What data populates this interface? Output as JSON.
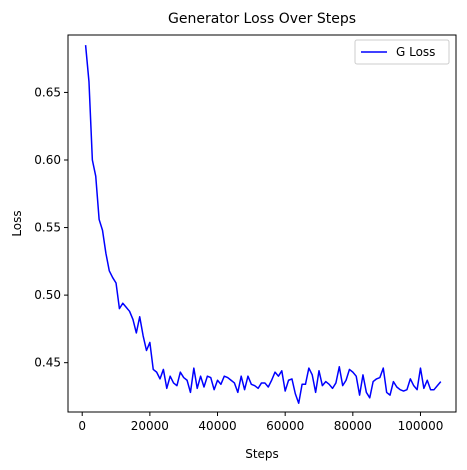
{
  "chart_data": {
    "type": "line",
    "title": "Generator Loss Over Steps",
    "xlabel": "Steps",
    "ylabel": "Loss",
    "xlim": [
      -4200,
      110500
    ],
    "ylim": [
      0.4135,
      0.6925
    ],
    "xticks": [
      0,
      20000,
      40000,
      60000,
      80000,
      100000
    ],
    "xtick_labels": [
      "0",
      "20000",
      "40000",
      "60000",
      "80000",
      "100000"
    ],
    "yticks": [
      0.45,
      0.5,
      0.55,
      0.6,
      0.65
    ],
    "ytick_labels": [
      "0.45",
      "0.50",
      "0.55",
      "0.60",
      "0.65"
    ],
    "grid": false,
    "legend_position": "upper-right",
    "series": [
      {
        "name": "G Loss",
        "color": "#0000ff",
        "x": [
          1000,
          2000,
          3000,
          4000,
          5000,
          6000,
          7000,
          8000,
          9000,
          10000,
          11000,
          12000,
          13000,
          14000,
          15000,
          16000,
          17000,
          18000,
          19000,
          20000,
          21000,
          22000,
          23000,
          24000,
          25000,
          26000,
          27000,
          28000,
          29000,
          30000,
          31000,
          32000,
          33000,
          34000,
          35000,
          36000,
          37000,
          38000,
          39000,
          40000,
          41000,
          42000,
          43000,
          44000,
          45000,
          46000,
          47000,
          48000,
          49000,
          50000,
          51000,
          52000,
          53000,
          54000,
          55000,
          56000,
          57000,
          58000,
          59000,
          60000,
          61000,
          62000,
          63000,
          64000,
          65000,
          66000,
          67000,
          68000,
          69000,
          70000,
          71000,
          72000,
          73000,
          74000,
          75000,
          76000,
          77000,
          78000,
          79000,
          80000,
          81000,
          82000,
          83000,
          84000,
          85000,
          86000,
          87000,
          88000,
          89000,
          90000,
          91000,
          92000,
          93000,
          94000,
          95000,
          96000,
          97000,
          98000,
          99000,
          100000,
          101000,
          102000,
          103000,
          104000,
          105000,
          106000
        ],
        "y": [
          0.685,
          0.658,
          0.6,
          0.588,
          0.556,
          0.548,
          0.531,
          0.518,
          0.513,
          0.509,
          0.49,
          0.494,
          0.491,
          0.488,
          0.482,
          0.472,
          0.484,
          0.47,
          0.459,
          0.465,
          0.445,
          0.443,
          0.438,
          0.445,
          0.431,
          0.44,
          0.435,
          0.433,
          0.443,
          0.439,
          0.437,
          0.428,
          0.446,
          0.431,
          0.44,
          0.432,
          0.44,
          0.439,
          0.43,
          0.437,
          0.434,
          0.44,
          0.439,
          0.437,
          0.435,
          0.428,
          0.44,
          0.43,
          0.44,
          0.434,
          0.433,
          0.431,
          0.435,
          0.435,
          0.432,
          0.437,
          0.443,
          0.44,
          0.444,
          0.429,
          0.437,
          0.438,
          0.427,
          0.42,
          0.434,
          0.434,
          0.446,
          0.441,
          0.428,
          0.444,
          0.433,
          0.436,
          0.434,
          0.431,
          0.435,
          0.447,
          0.433,
          0.437,
          0.445,
          0.443,
          0.44,
          0.426,
          0.441,
          0.428,
          0.424,
          0.436,
          0.438,
          0.439,
          0.446,
          0.428,
          0.426,
          0.436,
          0.432,
          0.43,
          0.429,
          0.43,
          0.438,
          0.433,
          0.43,
          0.446,
          0.431,
          0.437,
          0.43,
          0.43,
          0.433,
          0.436
        ]
      }
    ]
  }
}
